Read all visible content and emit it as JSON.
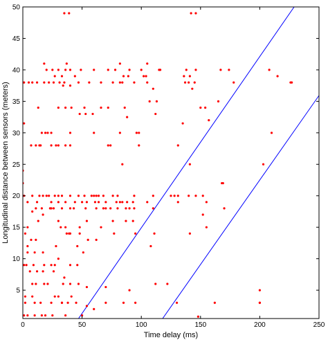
{
  "chart_data": {
    "type": "scatter",
    "title": "",
    "xlabel": "Time delay (ms)",
    "ylabel": "Longitudinal distance between sensors (meters)",
    "xlim": [
      0,
      250
    ],
    "ylim": [
      0.5,
      50
    ],
    "xticks": [
      0,
      50,
      100,
      150,
      200,
      250
    ],
    "yticks": [
      5,
      10,
      15,
      20,
      25,
      30,
      35,
      40,
      45,
      50
    ],
    "grid": false,
    "legend": "none",
    "colors": {
      "points": "#ff0000",
      "lines": "#0000ff",
      "axes": "#000000"
    },
    "points": [
      [
        35,
        49
      ],
      [
        39,
        49
      ],
      [
        142,
        49
      ],
      [
        146,
        49
      ],
      [
        105,
        41
      ],
      [
        82,
        41
      ],
      [
        18,
        41
      ],
      [
        37,
        41
      ],
      [
        20,
        40
      ],
      [
        25,
        40
      ],
      [
        30,
        40
      ],
      [
        36,
        40
      ],
      [
        40,
        40
      ],
      [
        49,
        40
      ],
      [
        60,
        40
      ],
      [
        72,
        40
      ],
      [
        78,
        40
      ],
      [
        90,
        40
      ],
      [
        100,
        40
      ],
      [
        115,
        40
      ],
      [
        116,
        40
      ],
      [
        138,
        40
      ],
      [
        146,
        40
      ],
      [
        167,
        40
      ],
      [
        174,
        40
      ],
      [
        208,
        40
      ],
      [
        27,
        39
      ],
      [
        33,
        39
      ],
      [
        44,
        39
      ],
      [
        85,
        39
      ],
      [
        89,
        39
      ],
      [
        102,
        39
      ],
      [
        104,
        39
      ],
      [
        136,
        39
      ],
      [
        141,
        39
      ],
      [
        215,
        39
      ],
      [
        1,
        38
      ],
      [
        5,
        38
      ],
      [
        8,
        38
      ],
      [
        12,
        38
      ],
      [
        18,
        38
      ],
      [
        22,
        38
      ],
      [
        26,
        38
      ],
      [
        31,
        38
      ],
      [
        35,
        38
      ],
      [
        47,
        38
      ],
      [
        56,
        38
      ],
      [
        66,
        38
      ],
      [
        76,
        38
      ],
      [
        82,
        38
      ],
      [
        84,
        38
      ],
      [
        94,
        38
      ],
      [
        105,
        38
      ],
      [
        137,
        38
      ],
      [
        140,
        38
      ],
      [
        145,
        38
      ],
      [
        178,
        38
      ],
      [
        226,
        38
      ],
      [
        227,
        38
      ],
      [
        34,
        37.5
      ],
      [
        40,
        37.5
      ],
      [
        110,
        37
      ],
      [
        143,
        37
      ],
      [
        107,
        35
      ],
      [
        113,
        35
      ],
      [
        165,
        35
      ],
      [
        112,
        33
      ],
      [
        135,
        31.5
      ],
      [
        13,
        34
      ],
      [
        30,
        34
      ],
      [
        36,
        34
      ],
      [
        41,
        34
      ],
      [
        52,
        34
      ],
      [
        66,
        34
      ],
      [
        72,
        34
      ],
      [
        86,
        34
      ],
      [
        150,
        34
      ],
      [
        154,
        34
      ],
      [
        48,
        33
      ],
      [
        53,
        33
      ],
      [
        59,
        33
      ],
      [
        88,
        32.5
      ],
      [
        157,
        32
      ],
      [
        1,
        31.5
      ],
      [
        16,
        30
      ],
      [
        19,
        30
      ],
      [
        21,
        30
      ],
      [
        24,
        30
      ],
      [
        40,
        30
      ],
      [
        60,
        30
      ],
      [
        82,
        30
      ],
      [
        96,
        30
      ],
      [
        98,
        30
      ],
      [
        210,
        30
      ],
      [
        7,
        28
      ],
      [
        11,
        28
      ],
      [
        14,
        28
      ],
      [
        15,
        28
      ],
      [
        24,
        28
      ],
      [
        28,
        28
      ],
      [
        30,
        28
      ],
      [
        36,
        28
      ],
      [
        40,
        28
      ],
      [
        72,
        28
      ],
      [
        74,
        28
      ],
      [
        98,
        28
      ],
      [
        131,
        28
      ],
      [
        141,
        25
      ],
      [
        203,
        25
      ],
      [
        84,
        25
      ],
      [
        0,
        24
      ],
      [
        0,
        22
      ],
      [
        168,
        22
      ],
      [
        169,
        22
      ],
      [
        1,
        20
      ],
      [
        8,
        20
      ],
      [
        14,
        20
      ],
      [
        17,
        20
      ],
      [
        20,
        20
      ],
      [
        22,
        20
      ],
      [
        27,
        20
      ],
      [
        30,
        20
      ],
      [
        33,
        20
      ],
      [
        40,
        20
      ],
      [
        47,
        20
      ],
      [
        52,
        20
      ],
      [
        58,
        20
      ],
      [
        60,
        20
      ],
      [
        62,
        20
      ],
      [
        64,
        20
      ],
      [
        68,
        20
      ],
      [
        76,
        20
      ],
      [
        80,
        20
      ],
      [
        94,
        20
      ],
      [
        110,
        20
      ],
      [
        125,
        20
      ],
      [
        128,
        20
      ],
      [
        131,
        20
      ],
      [
        140,
        20
      ],
      [
        146,
        20
      ],
      [
        152,
        20
      ],
      [
        4,
        19
      ],
      [
        12,
        19
      ],
      [
        24,
        19
      ],
      [
        30,
        19
      ],
      [
        36,
        19
      ],
      [
        44,
        19
      ],
      [
        50,
        19
      ],
      [
        54,
        19
      ],
      [
        61,
        19
      ],
      [
        64,
        19
      ],
      [
        70,
        19
      ],
      [
        79,
        19
      ],
      [
        82,
        19
      ],
      [
        84,
        19
      ],
      [
        88,
        19
      ],
      [
        93,
        19
      ],
      [
        105,
        19
      ],
      [
        131,
        19
      ],
      [
        155,
        19
      ],
      [
        11,
        18
      ],
      [
        16,
        18
      ],
      [
        23,
        18
      ],
      [
        24,
        18
      ],
      [
        26,
        18
      ],
      [
        33,
        18
      ],
      [
        40,
        18
      ],
      [
        43,
        18
      ],
      [
        53,
        18
      ],
      [
        62,
        18
      ],
      [
        68,
        18
      ],
      [
        74,
        18
      ],
      [
        80,
        18
      ],
      [
        87,
        18
      ],
      [
        90,
        18
      ],
      [
        94,
        18
      ],
      [
        110,
        18
      ],
      [
        170,
        18
      ],
      [
        8,
        17.5
      ],
      [
        17,
        17
      ],
      [
        13,
        16
      ],
      [
        30,
        16
      ],
      [
        36,
        15
      ],
      [
        48,
        15
      ],
      [
        54,
        16
      ],
      [
        70,
        18
      ],
      [
        76,
        16
      ],
      [
        87,
        16
      ],
      [
        93,
        16
      ],
      [
        152,
        17
      ],
      [
        4,
        15
      ],
      [
        2,
        14
      ],
      [
        7,
        13
      ],
      [
        11,
        13
      ],
      [
        32,
        15
      ],
      [
        37,
        14
      ],
      [
        39,
        14
      ],
      [
        40,
        14
      ],
      [
        48,
        14
      ],
      [
        55,
        13
      ],
      [
        62,
        13
      ],
      [
        66,
        15
      ],
      [
        77,
        14
      ],
      [
        95,
        14
      ],
      [
        141,
        14
      ],
      [
        155,
        15
      ],
      [
        4,
        12
      ],
      [
        4,
        11
      ],
      [
        10,
        11
      ],
      [
        17,
        11
      ],
      [
        24,
        9
      ],
      [
        27,
        9
      ],
      [
        28,
        12
      ],
      [
        30,
        10
      ],
      [
        46,
        12
      ],
      [
        51,
        11
      ],
      [
        1,
        9
      ],
      [
        3,
        9
      ],
      [
        9,
        9
      ],
      [
        18,
        9
      ],
      [
        40,
        9
      ],
      [
        46,
        9
      ],
      [
        108,
        12
      ],
      [
        111,
        14
      ],
      [
        6,
        8
      ],
      [
        12,
        8
      ],
      [
        17,
        8
      ],
      [
        26,
        8
      ],
      [
        35,
        7
      ],
      [
        34,
        6
      ],
      [
        8,
        6
      ],
      [
        11,
        6
      ],
      [
        18,
        6
      ],
      [
        21,
        6
      ],
      [
        40,
        6
      ],
      [
        47,
        6
      ],
      [
        54,
        5.5
      ],
      [
        70,
        5.5
      ],
      [
        90,
        5
      ],
      [
        112,
        6
      ],
      [
        122,
        6
      ],
      [
        200,
        5
      ],
      [
        2,
        4
      ],
      [
        8,
        4
      ],
      [
        15,
        3
      ],
      [
        24,
        3
      ],
      [
        27,
        4
      ],
      [
        30,
        4
      ],
      [
        33,
        3
      ],
      [
        41,
        4
      ],
      [
        45,
        3
      ],
      [
        2,
        3
      ],
      [
        10,
        3
      ],
      [
        33,
        3
      ],
      [
        38,
        3
      ],
      [
        54,
        2.5
      ],
      [
        60,
        2
      ],
      [
        70,
        3
      ],
      [
        85,
        3
      ],
      [
        95,
        3
      ],
      [
        130,
        3
      ],
      [
        162,
        3
      ],
      [
        200,
        3
      ],
      [
        200,
        3
      ],
      [
        1,
        1
      ],
      [
        4,
        1
      ],
      [
        10,
        1
      ],
      [
        16,
        1
      ],
      [
        19,
        1
      ],
      [
        25,
        1
      ],
      [
        36,
        1
      ],
      [
        50,
        1
      ],
      [
        148,
        0.8
      ]
    ],
    "lines": [
      {
        "x": [
          47,
          229
        ],
        "y": [
          0.5,
          50
        ]
      },
      {
        "x": [
          118,
          254
        ],
        "y": [
          0.5,
          37
        ]
      }
    ]
  }
}
